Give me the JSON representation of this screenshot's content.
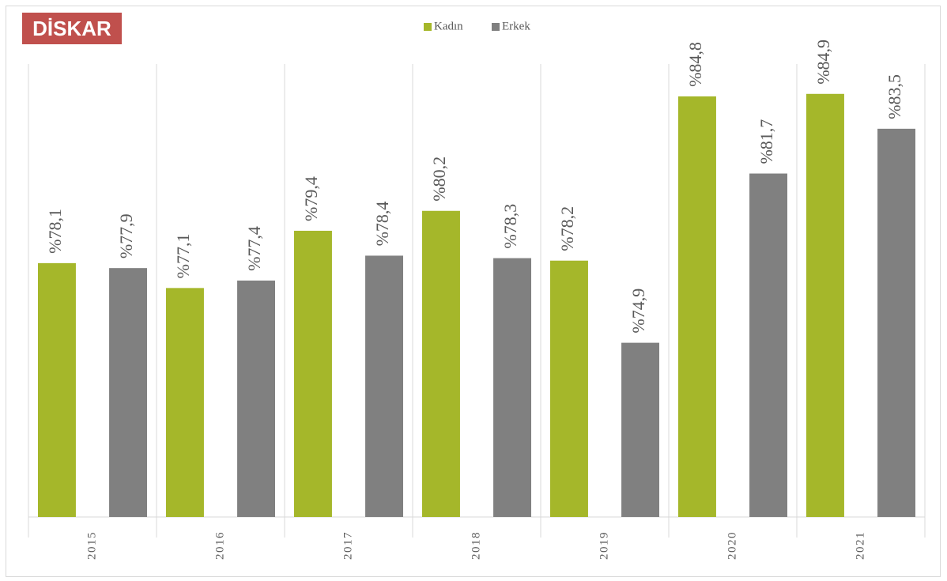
{
  "chart_data": {
    "type": "bar",
    "logo": "DİSKAR",
    "categories": [
      "2015",
      "2016",
      "2017",
      "2018",
      "2019",
      "2020",
      "2021"
    ],
    "series": [
      {
        "name": "Kadın",
        "color": "#a5b72a",
        "values": [
          78.1,
          77.1,
          79.4,
          80.2,
          78.2,
          84.8,
          84.9
        ],
        "value_labels": [
          "%78,1",
          "%77,1",
          "%79,4",
          "%80,2",
          "%78,2",
          "%84,8",
          "%84,9"
        ]
      },
      {
        "name": "Erkek",
        "color": "#808080",
        "values": [
          77.9,
          77.4,
          78.4,
          78.3,
          74.9,
          81.7,
          83.5
        ],
        "value_labels": [
          "%77,9",
          "%77,4",
          "%78,4",
          "%78,3",
          "%74,9",
          "%81,7",
          "%83,5"
        ]
      }
    ],
    "ylim": [
      67.9,
      86.1
    ],
    "legend": "top"
  }
}
